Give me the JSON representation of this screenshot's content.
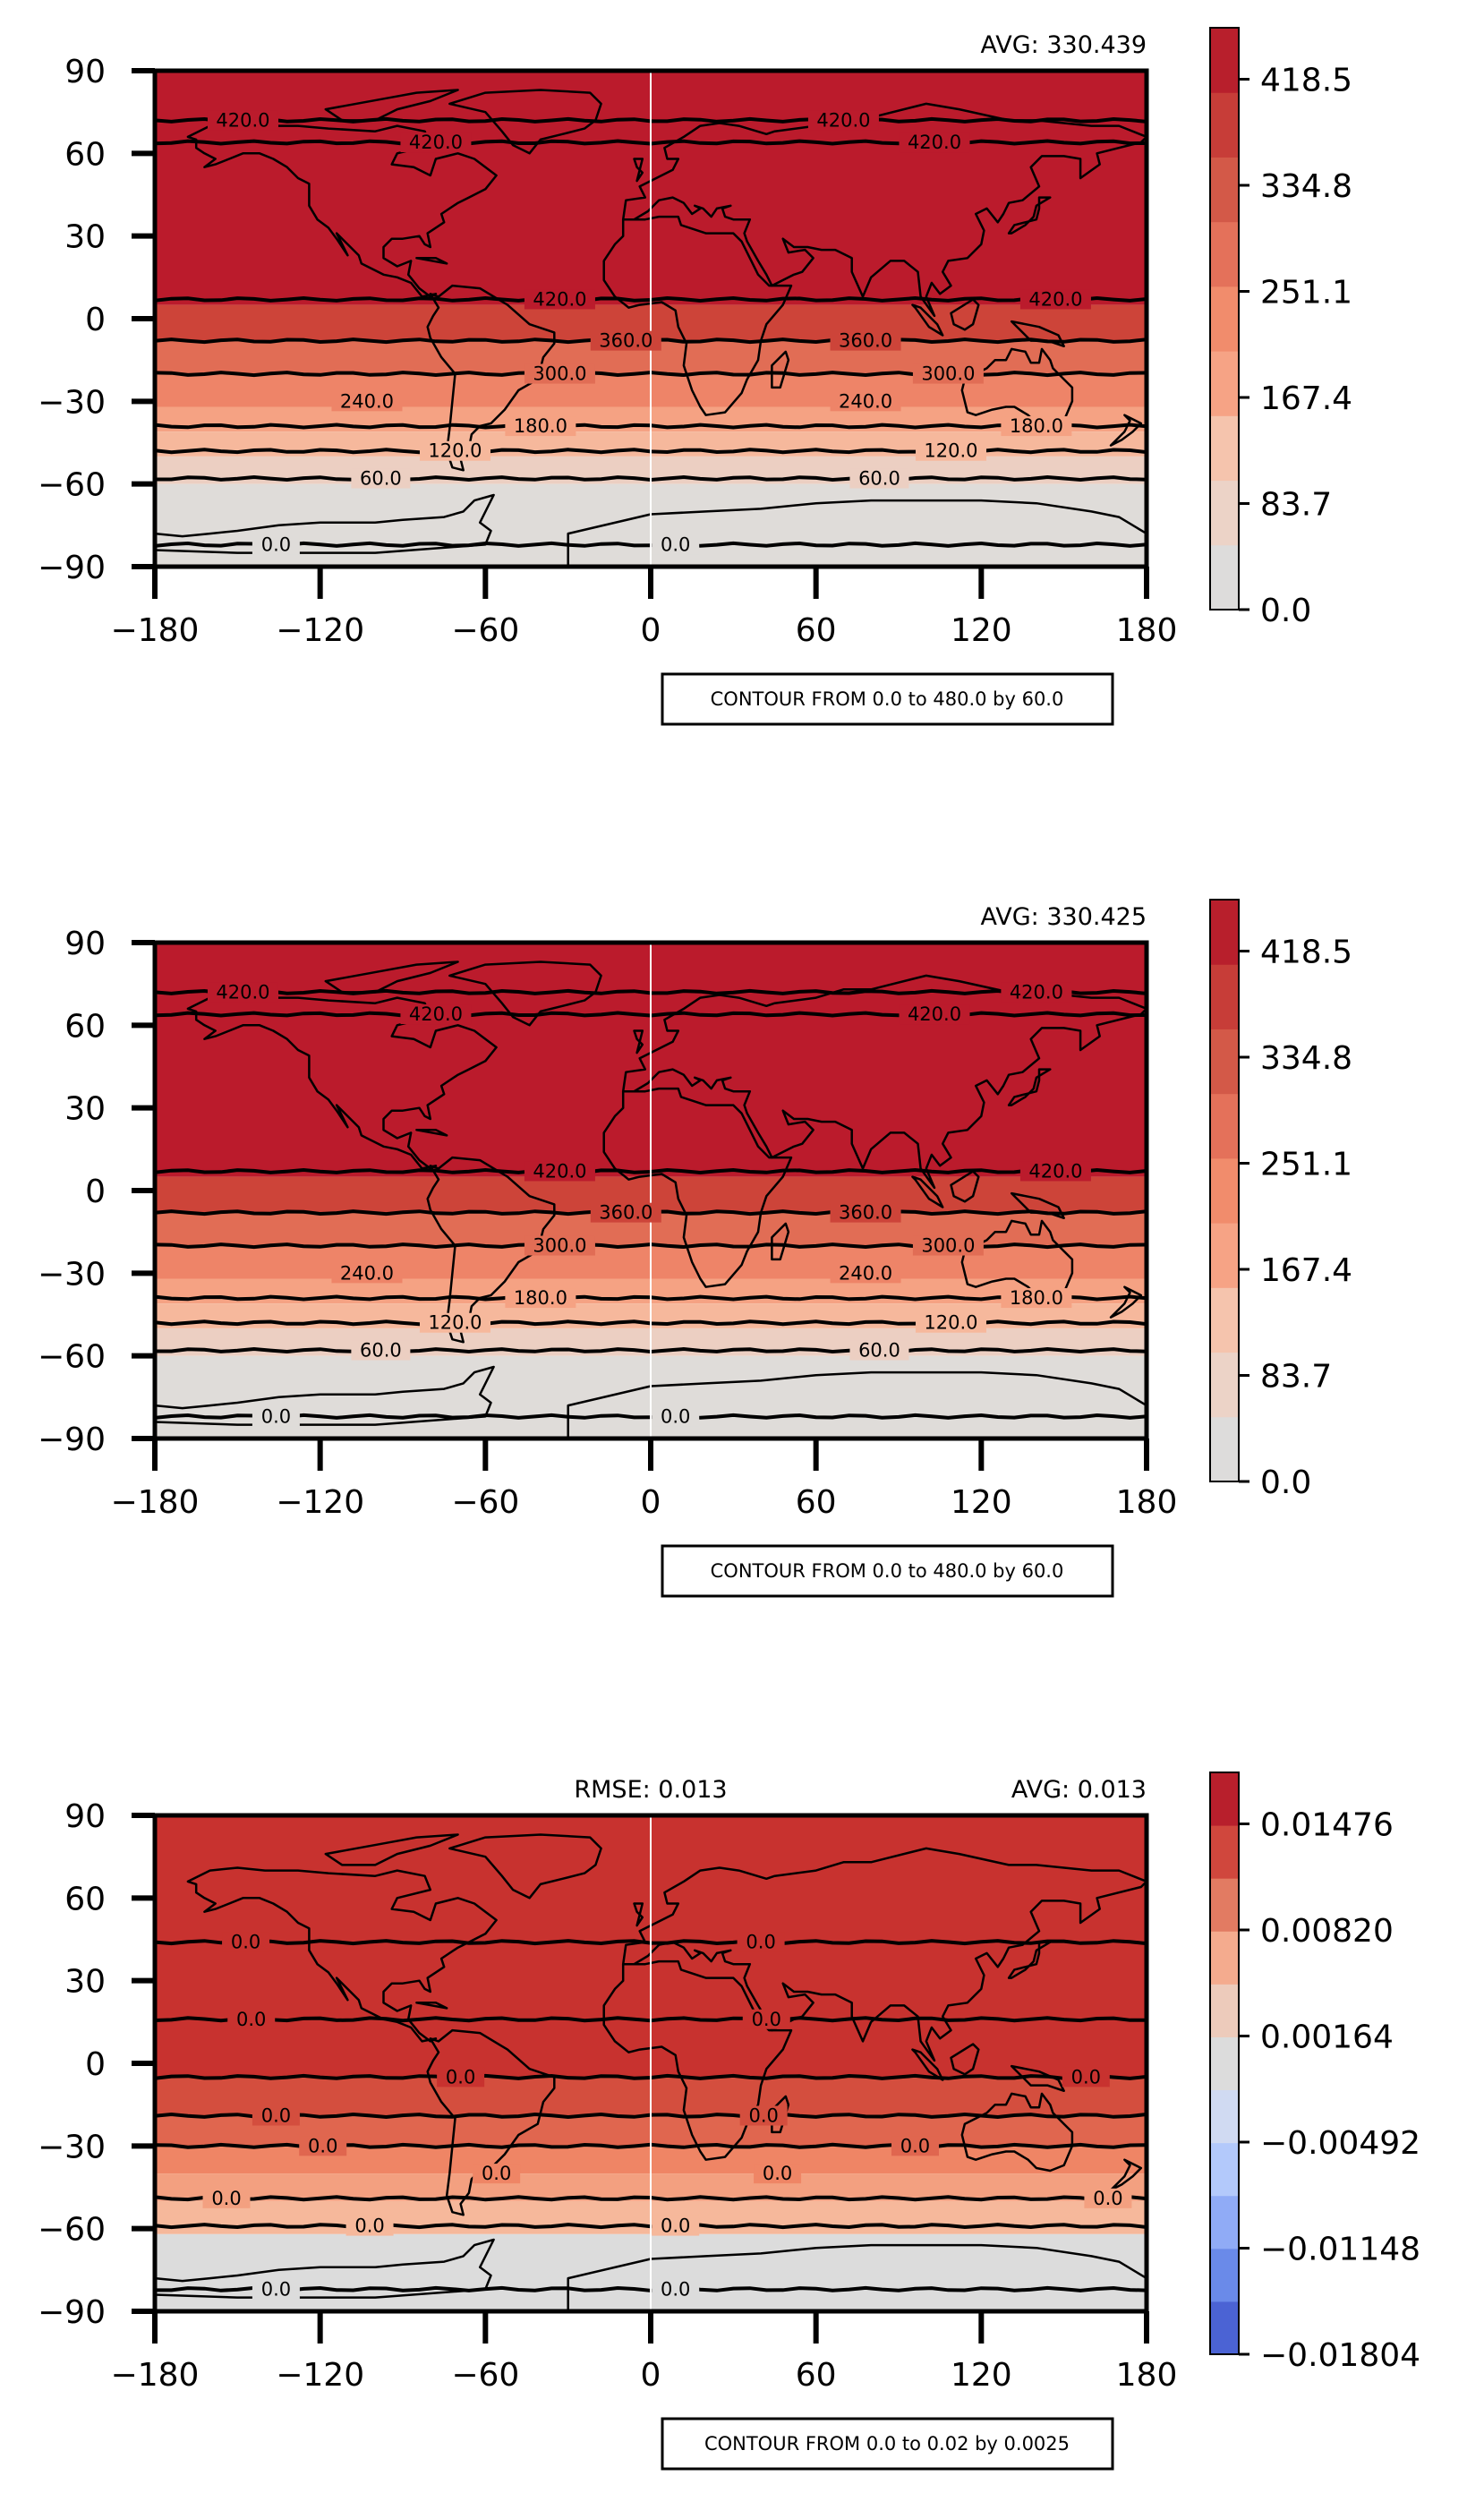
{
  "chart_data": [
    {
      "type": "heatmap",
      "header_right": "AVG: 330.439",
      "contour_note": "CONTOUR FROM 0.0 to 480.0 by 60.0",
      "xlim": [
        -180,
        180
      ],
      "ylim": [
        -90,
        90
      ],
      "xticks": [
        "−180",
        "−120",
        "−60",
        "0",
        "60",
        "120",
        "180"
      ],
      "yticks": [
        "90",
        "60",
        "30",
        "0",
        "−30",
        "−60",
        "−90"
      ],
      "colorbar": {
        "ticks": [
          "418.5",
          "334.8",
          "251.1",
          "167.4",
          "83.7",
          "0.0"
        ],
        "colors": [
          "#dddcdb",
          "#ecd3c7",
          "#f5c4ad",
          "#f6a385",
          "#f18c6c",
          "#e4715a",
          "#d35948",
          "#c73d38",
          "#b81f2c"
        ]
      },
      "bands": [
        {
          "lat_top": 90,
          "lat_bottom": 5,
          "color": "#bb1b2c"
        },
        {
          "lat_top": 5,
          "lat_bottom": -8,
          "color": "#cd4439"
        },
        {
          "lat_top": -8,
          "lat_bottom": -20,
          "color": "#e16d55"
        },
        {
          "lat_top": -20,
          "lat_bottom": -32,
          "color": "#ee8468"
        },
        {
          "lat_top": -32,
          "lat_bottom": -41,
          "color": "#f5a283"
        },
        {
          "lat_top": -41,
          "lat_bottom": -50,
          "color": "#f6b89c"
        },
        {
          "lat_top": -50,
          "lat_bottom": -60,
          "color": "#eccfc2"
        },
        {
          "lat_top": -60,
          "lat_bottom": -90,
          "color": "#dfdcd9"
        }
      ],
      "contour_lats": [
        72,
        64,
        7,
        -8,
        -20,
        -39,
        -48,
        -58,
        -82
      ],
      "contour_labels": [
        {
          "lon": -148,
          "lat": 72,
          "text": "420.0"
        },
        {
          "lon": -78,
          "lat": 64,
          "text": "420.0"
        },
        {
          "lon": 70,
          "lat": 72,
          "text": "420.0"
        },
        {
          "lon": 103,
          "lat": 64,
          "text": "420.0"
        },
        {
          "lon": -33,
          "lat": 7,
          "text": "420.0"
        },
        {
          "lon": 147,
          "lat": 7,
          "text": "420.0"
        },
        {
          "lon": -9,
          "lat": -8,
          "text": "360.0"
        },
        {
          "lon": 78,
          "lat": -8,
          "text": "360.0"
        },
        {
          "lon": -33,
          "lat": -20,
          "text": "300.0"
        },
        {
          "lon": 108,
          "lat": -20,
          "text": "300.0"
        },
        {
          "lon": -103,
          "lat": -30,
          "text": "240.0"
        },
        {
          "lon": 78,
          "lat": -30,
          "text": "240.0"
        },
        {
          "lon": -40,
          "lat": -39,
          "text": "180.0"
        },
        {
          "lon": 140,
          "lat": -39,
          "text": "180.0"
        },
        {
          "lon": -71,
          "lat": -48,
          "text": "120.0"
        },
        {
          "lon": 109,
          "lat": -48,
          "text": "120.0"
        },
        {
          "lon": -98,
          "lat": -58,
          "text": "60.0"
        },
        {
          "lon": 83,
          "lat": -58,
          "text": "60.0"
        },
        {
          "lon": -136,
          "lat": -82,
          "text": "0.0"
        },
        {
          "lon": 9,
          "lat": -82,
          "text": "0.0"
        }
      ]
    },
    {
      "type": "heatmap",
      "header_right": "AVG: 330.425",
      "contour_note": "CONTOUR FROM 0.0 to 480.0 by 60.0",
      "xlim": [
        -180,
        180
      ],
      "ylim": [
        -90,
        90
      ],
      "xticks": [
        "−180",
        "−120",
        "−60",
        "0",
        "60",
        "120",
        "180"
      ],
      "yticks": [
        "90",
        "60",
        "30",
        "0",
        "−30",
        "−60",
        "−90"
      ],
      "colorbar": {
        "ticks": [
          "418.5",
          "334.8",
          "251.1",
          "167.4",
          "83.7",
          "0.0"
        ],
        "colors": [
          "#dddcdb",
          "#ecd3c7",
          "#f5c4ad",
          "#f6a385",
          "#f18c6c",
          "#e4715a",
          "#d35948",
          "#c73d38",
          "#b81f2c"
        ]
      },
      "bands": [
        {
          "lat_top": 90,
          "lat_bottom": 5,
          "color": "#bb1b2c"
        },
        {
          "lat_top": 5,
          "lat_bottom": -8,
          "color": "#cd4439"
        },
        {
          "lat_top": -8,
          "lat_bottom": -20,
          "color": "#e16d55"
        },
        {
          "lat_top": -20,
          "lat_bottom": -32,
          "color": "#ee8468"
        },
        {
          "lat_top": -32,
          "lat_bottom": -41,
          "color": "#f5a283"
        },
        {
          "lat_top": -41,
          "lat_bottom": -50,
          "color": "#f6b89c"
        },
        {
          "lat_top": -50,
          "lat_bottom": -60,
          "color": "#eccfc2"
        },
        {
          "lat_top": -60,
          "lat_bottom": -90,
          "color": "#dfdcd9"
        }
      ],
      "contour_lats": [
        72,
        64,
        7,
        -8,
        -20,
        -39,
        -48,
        -58,
        -82
      ],
      "contour_labels": [
        {
          "lon": -148,
          "lat": 72,
          "text": "420.0"
        },
        {
          "lon": -78,
          "lat": 64,
          "text": "420.0"
        },
        {
          "lon": 140,
          "lat": 72,
          "text": "420.0"
        },
        {
          "lon": 103,
          "lat": 64,
          "text": "420.0"
        },
        {
          "lon": -33,
          "lat": 7,
          "text": "420.0"
        },
        {
          "lon": 147,
          "lat": 7,
          "text": "420.0"
        },
        {
          "lon": -9,
          "lat": -8,
          "text": "360.0"
        },
        {
          "lon": 78,
          "lat": -8,
          "text": "360.0"
        },
        {
          "lon": -33,
          "lat": -20,
          "text": "300.0"
        },
        {
          "lon": 108,
          "lat": -20,
          "text": "300.0"
        },
        {
          "lon": -103,
          "lat": -30,
          "text": "240.0"
        },
        {
          "lon": 78,
          "lat": -30,
          "text": "240.0"
        },
        {
          "lon": -40,
          "lat": -39,
          "text": "180.0"
        },
        {
          "lon": 140,
          "lat": -39,
          "text": "180.0"
        },
        {
          "lon": -71,
          "lat": -48,
          "text": "120.0"
        },
        {
          "lon": 109,
          "lat": -48,
          "text": "120.0"
        },
        {
          "lon": -98,
          "lat": -58,
          "text": "60.0"
        },
        {
          "lon": 83,
          "lat": -58,
          "text": "60.0"
        },
        {
          "lon": -136,
          "lat": -82,
          "text": "0.0"
        },
        {
          "lon": 9,
          "lat": -82,
          "text": "0.0"
        }
      ]
    },
    {
      "type": "heatmap",
      "header_center": "RMSE: 0.013",
      "header_right": "AVG: 0.013",
      "contour_note": "CONTOUR FROM 0.0 to 0.02 by 0.0025",
      "xlim": [
        -180,
        180
      ],
      "ylim": [
        -90,
        90
      ],
      "xticks": [
        "−180",
        "−120",
        "−60",
        "0",
        "60",
        "120",
        "180"
      ],
      "yticks": [
        "90",
        "60",
        "30",
        "0",
        "−30",
        "−60",
        "−90"
      ],
      "colorbar": {
        "ticks": [
          "0.01476",
          "0.00820",
          "0.00164",
          "−0.00492",
          "−0.01148",
          "−0.01804"
        ],
        "colors": [
          "#4b63d4",
          "#6a8ae9",
          "#90abf6",
          "#b3c9fb",
          "#d0daf2",
          "#dcdcdc",
          "#edcbbb",
          "#f4ab8e",
          "#e27b62",
          "#d0473d",
          "#b81f2c"
        ]
      },
      "bands": [
        {
          "lat_top": 90,
          "lat_bottom": -5,
          "color": "#c8322f"
        },
        {
          "lat_top": -5,
          "lat_bottom": -19,
          "color": "#d44e3e"
        },
        {
          "lat_top": -19,
          "lat_bottom": -30,
          "color": "#e0664f"
        },
        {
          "lat_top": -30,
          "lat_bottom": -40,
          "color": "#ef8565"
        },
        {
          "lat_top": -40,
          "lat_bottom": -50,
          "color": "#f3a080"
        },
        {
          "lat_top": -50,
          "lat_bottom": -62,
          "color": "#f6b89b"
        },
        {
          "lat_top": -62,
          "lat_bottom": -90,
          "color": "#dcdcdc"
        }
      ],
      "contour_lats": [
        44,
        16,
        -5,
        -19,
        -30,
        -49,
        -59,
        -82
      ],
      "contour_labels": [
        {
          "lon": -147,
          "lat": 44,
          "text": "0.0"
        },
        {
          "lon": 40,
          "lat": 44,
          "text": "0.0"
        },
        {
          "lon": -145,
          "lat": 16,
          "text": "0.0"
        },
        {
          "lon": 42,
          "lat": 16,
          "text": "0.0"
        },
        {
          "lon": -69,
          "lat": -5,
          "text": "0.0"
        },
        {
          "lon": 158,
          "lat": -5,
          "text": "0.0"
        },
        {
          "lon": -136,
          "lat": -19,
          "text": "0.0"
        },
        {
          "lon": 41,
          "lat": -19,
          "text": "0.0"
        },
        {
          "lon": -119,
          "lat": -30,
          "text": "0.0"
        },
        {
          "lon": 96,
          "lat": -30,
          "text": "0.0"
        },
        {
          "lon": -56,
          "lat": -40,
          "text": "0.0"
        },
        {
          "lon": 46,
          "lat": -40,
          "text": "0.0"
        },
        {
          "lon": -154,
          "lat": -49,
          "text": "0.0"
        },
        {
          "lon": 166,
          "lat": -49,
          "text": "0.0"
        },
        {
          "lon": -102,
          "lat": -59,
          "text": "0.0"
        },
        {
          "lon": 9,
          "lat": -59,
          "text": "0.0"
        },
        {
          "lon": -136,
          "lat": -82,
          "text": "0.0"
        },
        {
          "lon": 9,
          "lat": -82,
          "text": "0.0"
        }
      ]
    }
  ]
}
